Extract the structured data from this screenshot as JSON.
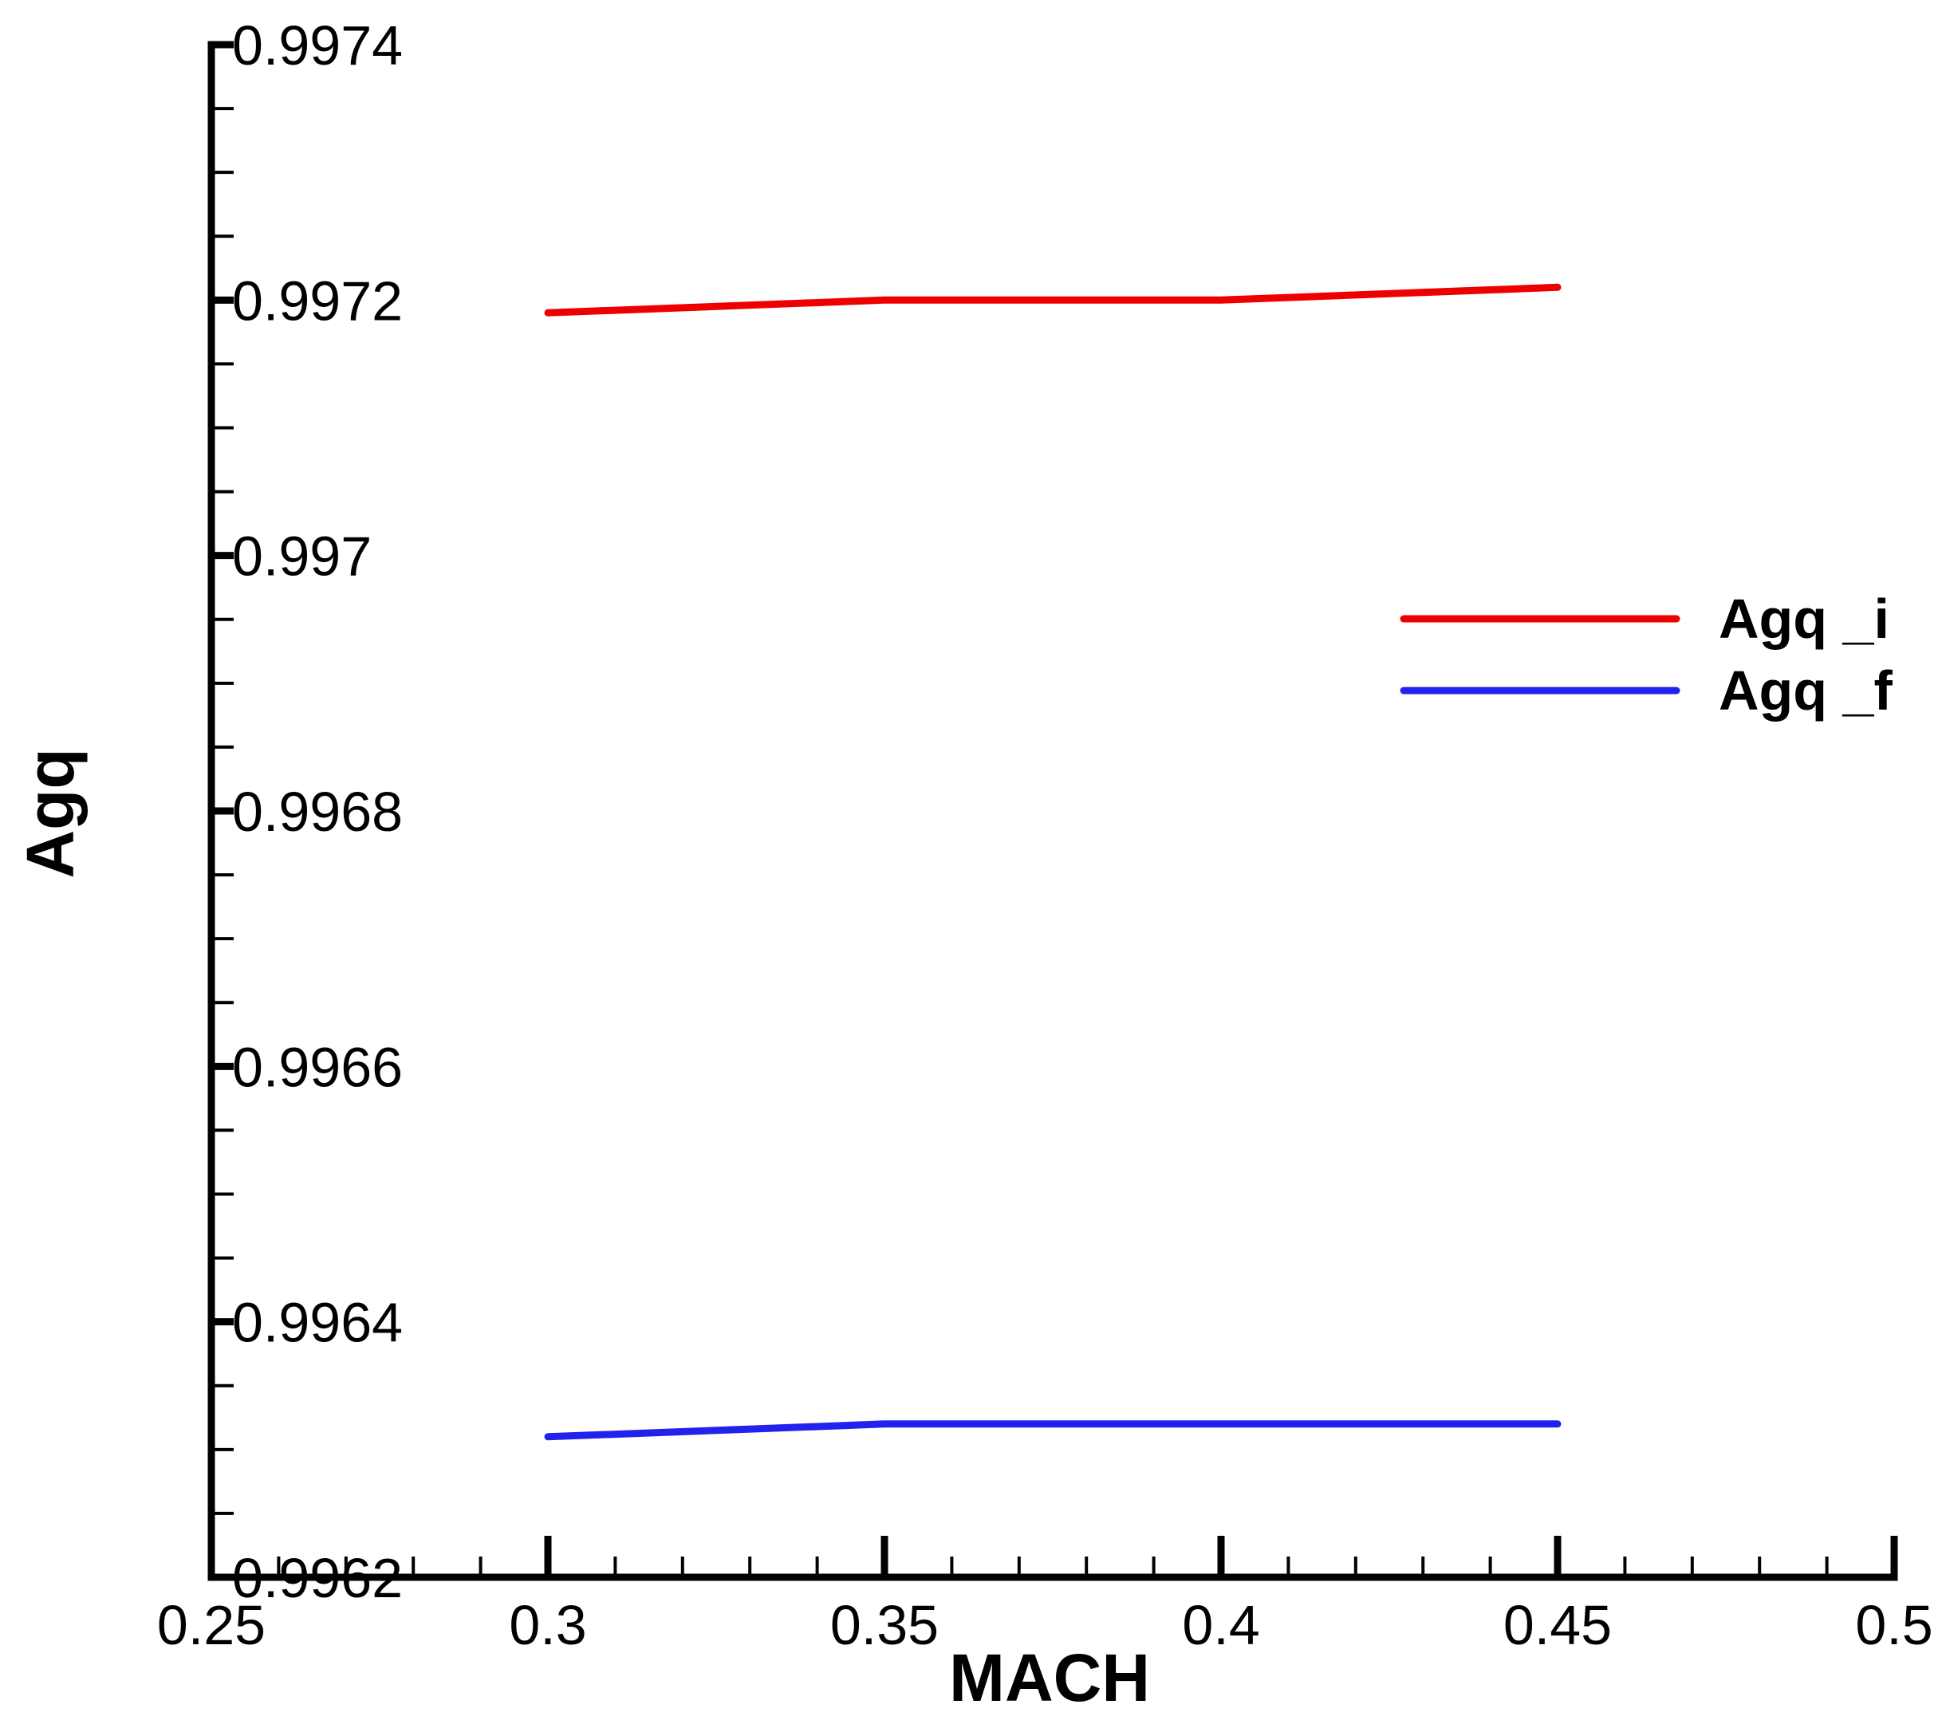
{
  "chart_data": {
    "type": "line",
    "xlabel": "MACH",
    "ylabel": "Agq",
    "xlim": [
      0.25,
      0.5
    ],
    "ylim": [
      0.9962,
      0.9974
    ],
    "x_ticks": [
      "0.25",
      "0.3",
      "0.35",
      "0.4",
      "0.45",
      "0.5"
    ],
    "y_ticks": [
      "0.9962",
      "0.9964",
      "0.9966",
      "0.9968",
      "0.997",
      "0.9972",
      "0.9974"
    ],
    "x": [
      0.3,
      0.35,
      0.4,
      0.45
    ],
    "series": [
      {
        "name": "Agq _i",
        "color": "#ee0000",
        "values": [
          0.99719,
          0.9972,
          0.9972,
          0.99721
        ]
      },
      {
        "name": "Agq _f",
        "color": "#2222ee",
        "values": [
          0.99631,
          0.99632,
          0.99632,
          0.99632
        ]
      }
    ],
    "legend_position": "right",
    "grid": false
  }
}
